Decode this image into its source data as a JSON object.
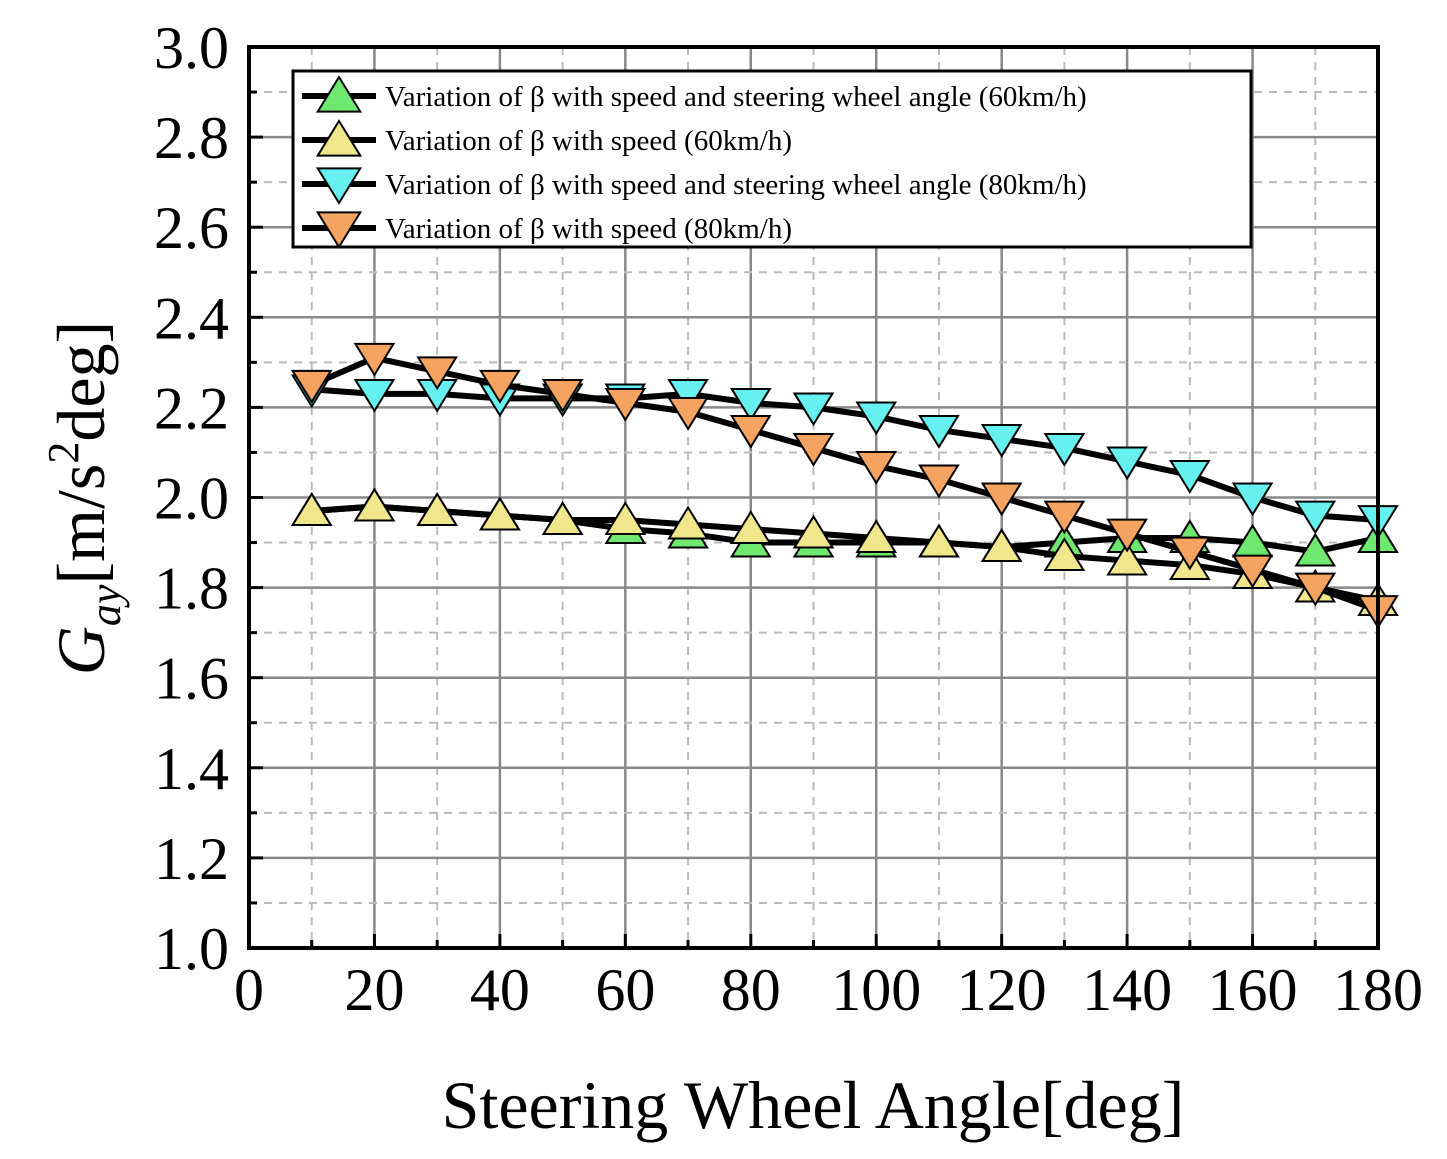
{
  "chart_data": {
    "type": "line",
    "xlabel": "Steering Wheel Angle[deg]",
    "ylabel": {
      "symbol": "G",
      "subscript": "ay",
      "unit_before_sup": "[m/s",
      "unit_sup": "2",
      "unit_after_sup": "deg]"
    },
    "xlim": [
      0,
      180
    ],
    "ylim": [
      1.0,
      3.0
    ],
    "xticks": [
      "0",
      "20",
      "40",
      "60",
      "80",
      "100",
      "120",
      "140",
      "160",
      "180"
    ],
    "yticks": [
      "1.0",
      "1.2",
      "1.4",
      "1.6",
      "1.8",
      "2.0",
      "2.2",
      "2.4",
      "2.6",
      "2.8",
      "3.0"
    ],
    "grid": true,
    "legend_position": "top",
    "x": [
      10,
      20,
      30,
      40,
      50,
      60,
      70,
      80,
      90,
      100,
      110,
      120,
      130,
      140,
      150,
      160,
      170,
      180
    ],
    "series": [
      {
        "name": "Variation of β with speed and steering wheel angle (60km/h)",
        "marker": "triangle-up",
        "color": "#6ee86e",
        "values": [
          1.97,
          1.98,
          1.97,
          1.96,
          1.95,
          1.93,
          1.92,
          1.9,
          1.9,
          1.9,
          1.9,
          1.89,
          1.9,
          1.91,
          1.91,
          1.9,
          1.88,
          1.91
        ]
      },
      {
        "name": "Variation of β with speed (60km/h)",
        "marker": "triangle-up",
        "color": "#f0e68c",
        "values": [
          1.97,
          1.98,
          1.97,
          1.96,
          1.95,
          1.95,
          1.94,
          1.93,
          1.92,
          1.91,
          1.9,
          1.89,
          1.87,
          1.86,
          1.85,
          1.83,
          1.8,
          1.77
        ]
      },
      {
        "name": "Variation of β with speed and steering wheel angle (80km/h)",
        "marker": "triangle-down",
        "color": "#66f0f0",
        "values": [
          2.24,
          2.23,
          2.23,
          2.22,
          2.22,
          2.22,
          2.23,
          2.21,
          2.2,
          2.18,
          2.15,
          2.13,
          2.11,
          2.08,
          2.05,
          2.0,
          1.96,
          1.95
        ]
      },
      {
        "name": "Variation of β with speed (80km/h)",
        "marker": "triangle-down",
        "color": "#f4a460",
        "values": [
          2.25,
          2.31,
          2.28,
          2.25,
          2.23,
          2.21,
          2.19,
          2.15,
          2.11,
          2.07,
          2.04,
          2.0,
          1.96,
          1.92,
          1.88,
          1.84,
          1.8,
          1.75
        ]
      }
    ]
  }
}
